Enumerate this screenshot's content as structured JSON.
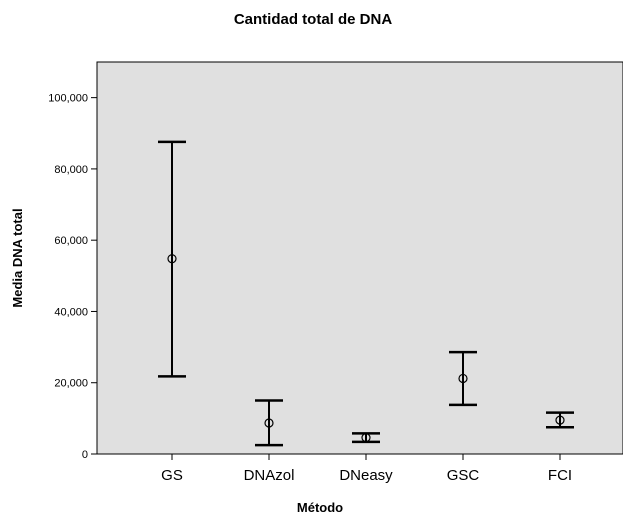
{
  "chart_data": {
    "type": "errorbar",
    "title": "Cantidad total de DNA",
    "xlabel": "Método",
    "ylabel": "Media DNA total",
    "categories": [
      "GS",
      "DNAzol",
      "DNeasy",
      "GSC",
      "FCI"
    ],
    "series": [
      {
        "mean": [
          54800,
          8700,
          4600,
          21200,
          9500
        ],
        "lower": [
          21800,
          2500,
          3400,
          13800,
          7500
        ],
        "upper": [
          87600,
          15000,
          5800,
          28600,
          11600
        ]
      }
    ],
    "ylim": [
      0,
      110000
    ],
    "yticks": [
      0,
      20000,
      40000,
      60000,
      80000,
      100000
    ],
    "ytick_labels": [
      "0",
      "20,000",
      "40,000",
      "60,000",
      "80,000",
      "100,000"
    ],
    "grid": false,
    "plot_background": "#e0e0e0",
    "mark_color": "#000000"
  }
}
